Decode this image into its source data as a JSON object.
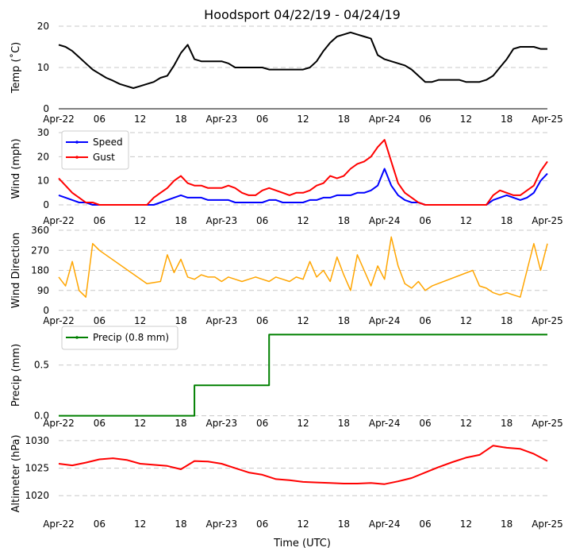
{
  "title": "Hoodsport 04/22/19 - 04/24/19",
  "xlabel": "Time (UTC)",
  "x_ticks": [
    "Apr-22",
    "06",
    "12",
    "18",
    "Apr-23",
    "06",
    "12",
    "18",
    "Apr-24",
    "06",
    "12",
    "18",
    "Apr-25"
  ],
  "chart_data": [
    {
      "type": "line",
      "name": "temperature",
      "ylabel": "Temp (˚C)",
      "ylim": [
        0,
        20
      ],
      "yticks": [
        "0",
        "10",
        "20"
      ],
      "x_unit": "hours since Apr-22 00 UTC",
      "xlim": [
        0,
        72
      ],
      "series": [
        {
          "name": "Temp",
          "color": "#000000",
          "x": [
            0,
            1,
            2,
            3,
            4,
            5,
            6,
            7,
            8,
            9,
            10,
            11,
            12,
            13,
            14,
            15,
            16,
            17,
            18,
            19,
            20,
            21,
            22,
            23,
            24,
            25,
            26,
            27,
            28,
            29,
            30,
            31,
            32,
            33,
            34,
            35,
            36,
            37,
            38,
            39,
            40,
            41,
            42,
            43,
            44,
            45,
            46,
            47,
            48,
            49,
            50,
            51,
            52,
            53,
            54,
            55,
            56,
            57,
            58,
            59,
            60,
            61,
            62,
            63,
            64,
            65,
            66,
            67,
            68,
            69,
            70,
            71,
            72
          ],
          "y": [
            15.5,
            15,
            14,
            12.5,
            11,
            9.5,
            8.5,
            7.5,
            6.8,
            6,
            5.5,
            5,
            5.5,
            6,
            6.5,
            7.5,
            8,
            10.5,
            13.5,
            15.5,
            12,
            11.5,
            11.5,
            11.5,
            11.5,
            11,
            10,
            10,
            10,
            10,
            10,
            9.5,
            9.5,
            9.5,
            9.5,
            9.5,
            9.5,
            10,
            11.5,
            14,
            16,
            17.5,
            18,
            18.5,
            18,
            17.5,
            17,
            13,
            12,
            11.5,
            11,
            10.5,
            9.5,
            8,
            6.5,
            6.5,
            7,
            7,
            7,
            7,
            6.5,
            6.5,
            6.5,
            7,
            8,
            10,
            12,
            14.5,
            15,
            15,
            15,
            14.5,
            14.5
          ]
        }
      ]
    },
    {
      "type": "line",
      "name": "wind",
      "ylabel": "Wind (mph)",
      "ylim": [
        0,
        30
      ],
      "yticks": [
        "0",
        "10",
        "20",
        "30"
      ],
      "x_unit": "hours since Apr-22 00 UTC",
      "xlim": [
        0,
        72
      ],
      "legend": {
        "position": "top-left",
        "entries": [
          "Speed",
          "Gust"
        ]
      },
      "series": [
        {
          "name": "Speed",
          "color": "#0000ff",
          "x": [
            0,
            1,
            2,
            3,
            4,
            5,
            6,
            7,
            8,
            9,
            10,
            11,
            12,
            13,
            14,
            15,
            16,
            17,
            18,
            19,
            20,
            21,
            22,
            23,
            24,
            25,
            26,
            27,
            28,
            29,
            30,
            31,
            32,
            33,
            34,
            35,
            36,
            37,
            38,
            39,
            40,
            41,
            42,
            43,
            44,
            45,
            46,
            47,
            48,
            49,
            50,
            51,
            52,
            53,
            54,
            55,
            56,
            57,
            58,
            59,
            60,
            61,
            62,
            63,
            64,
            65,
            66,
            67,
            68,
            69,
            70,
            71,
            72
          ],
          "y": [
            4,
            3,
            2,
            1,
            1,
            0,
            0,
            0,
            0,
            0,
            0,
            0,
            0,
            0,
            0,
            1,
            2,
            3,
            4,
            3,
            3,
            3,
            2,
            2,
            2,
            2,
            1,
            1,
            1,
            1,
            1,
            2,
            2,
            1,
            1,
            1,
            1,
            2,
            2,
            3,
            3,
            4,
            4,
            4,
            5,
            5,
            6,
            8,
            15,
            8,
            4,
            2,
            1,
            1,
            0,
            0,
            0,
            0,
            0,
            0,
            0,
            0,
            0,
            0,
            2,
            3,
            4,
            3,
            2,
            3,
            5,
            10,
            13
          ]
        },
        {
          "name": "Gust",
          "color": "#ff0000",
          "x": [
            0,
            1,
            2,
            3,
            4,
            5,
            6,
            7,
            8,
            9,
            10,
            11,
            12,
            13,
            14,
            15,
            16,
            17,
            18,
            19,
            20,
            21,
            22,
            23,
            24,
            25,
            26,
            27,
            28,
            29,
            30,
            31,
            32,
            33,
            34,
            35,
            36,
            37,
            38,
            39,
            40,
            41,
            42,
            43,
            44,
            45,
            46,
            47,
            48,
            49,
            50,
            51,
            52,
            53,
            54,
            55,
            56,
            57,
            58,
            59,
            60,
            61,
            62,
            63,
            64,
            65,
            66,
            67,
            68,
            69,
            70,
            71,
            72
          ],
          "y": [
            11,
            8,
            5,
            3,
            1,
            1,
            0,
            0,
            0,
            0,
            0,
            0,
            0,
            0,
            3,
            5,
            7,
            10,
            12,
            9,
            8,
            8,
            7,
            7,
            7,
            8,
            7,
            5,
            4,
            4,
            6,
            7,
            6,
            5,
            4,
            5,
            5,
            6,
            8,
            9,
            12,
            11,
            12,
            15,
            17,
            18,
            20,
            24,
            27,
            18,
            9,
            5,
            3,
            1,
            0,
            0,
            0,
            0,
            0,
            0,
            0,
            0,
            0,
            0,
            4,
            6,
            5,
            4,
            4,
            6,
            8,
            14,
            18
          ]
        }
      ]
    },
    {
      "type": "line",
      "name": "wind_direction",
      "ylabel": "Wind Direction",
      "ylim": [
        0,
        360
      ],
      "yticks": [
        "0",
        "90",
        "180",
        "270",
        "360"
      ],
      "x_unit": "hours since Apr-22 00 UTC",
      "xlim": [
        0,
        72
      ],
      "series": [
        {
          "name": "Wind Direction",
          "color": "#ffa500",
          "x": [
            0,
            1,
            2,
            3,
            4,
            5,
            6,
            13,
            15,
            16,
            17,
            18,
            19,
            20,
            21,
            22,
            23,
            24,
            25,
            26,
            27,
            28,
            29,
            30,
            31,
            32,
            33,
            34,
            35,
            36,
            37,
            38,
            39,
            40,
            41,
            42,
            43,
            44,
            45,
            46,
            47,
            48,
            49,
            50,
            51,
            52,
            53,
            54,
            55,
            61,
            62,
            63,
            64,
            65,
            66,
            67,
            68,
            69,
            70,
            71,
            72
          ],
          "y": [
            150,
            110,
            220,
            90,
            60,
            300,
            270,
            120,
            130,
            250,
            170,
            230,
            150,
            140,
            160,
            150,
            150,
            130,
            150,
            140,
            130,
            140,
            150,
            140,
            130,
            150,
            140,
            130,
            150,
            140,
            220,
            150,
            180,
            130,
            240,
            160,
            90,
            250,
            180,
            110,
            200,
            140,
            330,
            200,
            120,
            100,
            130,
            90,
            110,
            180,
            110,
            100,
            80,
            70,
            80,
            70,
            60,
            180,
            300,
            180,
            300
          ]
        }
      ]
    },
    {
      "type": "line",
      "name": "precipitation",
      "ylabel": "Precip (mm)",
      "ylim": [
        -0.05,
        0.85
      ],
      "yticks": [
        "0.0",
        "0.5"
      ],
      "x_unit": "hours since Apr-22 00 UTC",
      "xlim": [
        0,
        72
      ],
      "legend": {
        "position": "top-left",
        "entries": [
          "Precip (0.8 mm)"
        ]
      },
      "series": [
        {
          "name": "Precip (0.8 mm)",
          "color": "#008000",
          "x": [
            0,
            20,
            20,
            31,
            31,
            72
          ],
          "y": [
            0,
            0,
            0.3,
            0.3,
            0.8,
            0.8
          ]
        }
      ]
    },
    {
      "type": "line",
      "name": "altimeter",
      "ylabel": "Altimeter (hPa)",
      "ylim": [
        1017,
        1031
      ],
      "yticks": [
        "1020",
        "1025",
        "1030"
      ],
      "x_unit": "hours since Apr-22 00 UTC",
      "xlim": [
        0,
        72
      ],
      "series": [
        {
          "name": "Altimeter",
          "color": "#ff0000",
          "x": [
            0,
            2,
            4,
            6,
            8,
            10,
            12,
            14,
            16,
            18,
            20,
            22,
            24,
            26,
            28,
            30,
            32,
            34,
            36,
            38,
            40,
            42,
            44,
            46,
            48,
            50,
            52,
            54,
            56,
            58,
            60,
            62,
            64,
            66,
            68,
            70,
            72
          ],
          "y": [
            1025.8,
            1025.5,
            1026,
            1026.6,
            1026.8,
            1026.5,
            1025.8,
            1025.6,
            1025.4,
            1024.8,
            1026.3,
            1026.2,
            1025.8,
            1025,
            1024.2,
            1023.8,
            1023,
            1022.8,
            1022.5,
            1022.4,
            1022.3,
            1022.2,
            1022.2,
            1022.3,
            1022.1,
            1022.6,
            1023.2,
            1024.2,
            1025.2,
            1026.1,
            1026.9,
            1027.4,
            1029.1,
            1028.7,
            1028.5,
            1027.6,
            1026.3
          ]
        }
      ]
    }
  ]
}
